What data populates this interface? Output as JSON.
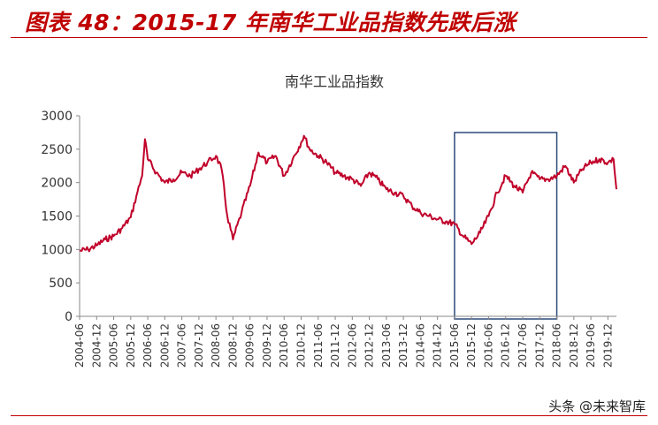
{
  "figure_title": "图表 48：2015-17 年南华工业品指数先跌后涨",
  "watermark": "头条 @未来智库",
  "colors": {
    "accent": "#c00000",
    "line": "#c0002a",
    "box": "#2b4a7a",
    "axis": "#888888"
  },
  "chart_data": {
    "type": "line",
    "title": "南华工业品指数",
    "xlabel": "",
    "ylabel": "",
    "ylim": [
      0,
      3000
    ],
    "yticks": [
      0,
      500,
      1000,
      1500,
      2000,
      2500,
      3000
    ],
    "grid": false,
    "legend": "none",
    "x_ticks": [
      "2004-06",
      "2004-12",
      "2005-06",
      "2005-12",
      "2006-06",
      "2006-12",
      "2007-06",
      "2007-12",
      "2008-06",
      "2008-12",
      "2009-06",
      "2009-12",
      "2010-06",
      "2010-12",
      "2011-06",
      "2011-12",
      "2012-06",
      "2012-12",
      "2013-06",
      "2013-12",
      "2014-06",
      "2014-12",
      "2015-06",
      "2015-12",
      "2016-06",
      "2016-12",
      "2017-06",
      "2017-12",
      "2018-06",
      "2018-12",
      "2019-06",
      "2019-12"
    ],
    "x_range": [
      "2004-06",
      "2020-03"
    ],
    "highlight_box": {
      "start": "2015-06",
      "end": "2018-06"
    },
    "series": [
      {
        "x": [
          "2004-06",
          "2004-09",
          "2004-12",
          "2005-03",
          "2005-06",
          "2005-09",
          "2005-12",
          "2006-02",
          "2006-04",
          "2006-05",
          "2006-06",
          "2006-09",
          "2006-12",
          "2007-03",
          "2007-06",
          "2007-09",
          "2007-12",
          "2008-03",
          "2008-06",
          "2008-08",
          "2008-10",
          "2008-12",
          "2009-03",
          "2009-06",
          "2009-09",
          "2009-12",
          "2010-03",
          "2010-06",
          "2010-09",
          "2010-12",
          "2011-01",
          "2011-03",
          "2011-06",
          "2011-09",
          "2011-12",
          "2012-03",
          "2012-06",
          "2012-09",
          "2012-12",
          "2013-03",
          "2013-06",
          "2013-09",
          "2013-12",
          "2014-03",
          "2014-06",
          "2014-09",
          "2014-12",
          "2015-03",
          "2015-06",
          "2015-09",
          "2015-12",
          "2016-03",
          "2016-06",
          "2016-09",
          "2016-12",
          "2017-03",
          "2017-06",
          "2017-09",
          "2017-12",
          "2018-03",
          "2018-06",
          "2018-09",
          "2018-12",
          "2019-03",
          "2019-06",
          "2019-09",
          "2019-12",
          "2020-02",
          "2020-03"
        ],
        "values": [
          980,
          1000,
          1060,
          1150,
          1200,
          1320,
          1480,
          1800,
          2100,
          2650,
          2350,
          2150,
          2000,
          2050,
          2150,
          2100,
          2200,
          2300,
          2400,
          2200,
          1500,
          1150,
          1550,
          1950,
          2450,
          2300,
          2400,
          2100,
          2350,
          2600,
          2700,
          2500,
          2400,
          2300,
          2150,
          2100,
          2050,
          1950,
          2150,
          2050,
          1900,
          1850,
          1800,
          1650,
          1550,
          1500,
          1450,
          1420,
          1380,
          1200,
          1080,
          1250,
          1500,
          1850,
          2100,
          1950,
          1850,
          2150,
          2050,
          2050,
          2100,
          2250,
          2000,
          2200,
          2300,
          2350,
          2300,
          2350,
          1900
        ]
      }
    ]
  }
}
